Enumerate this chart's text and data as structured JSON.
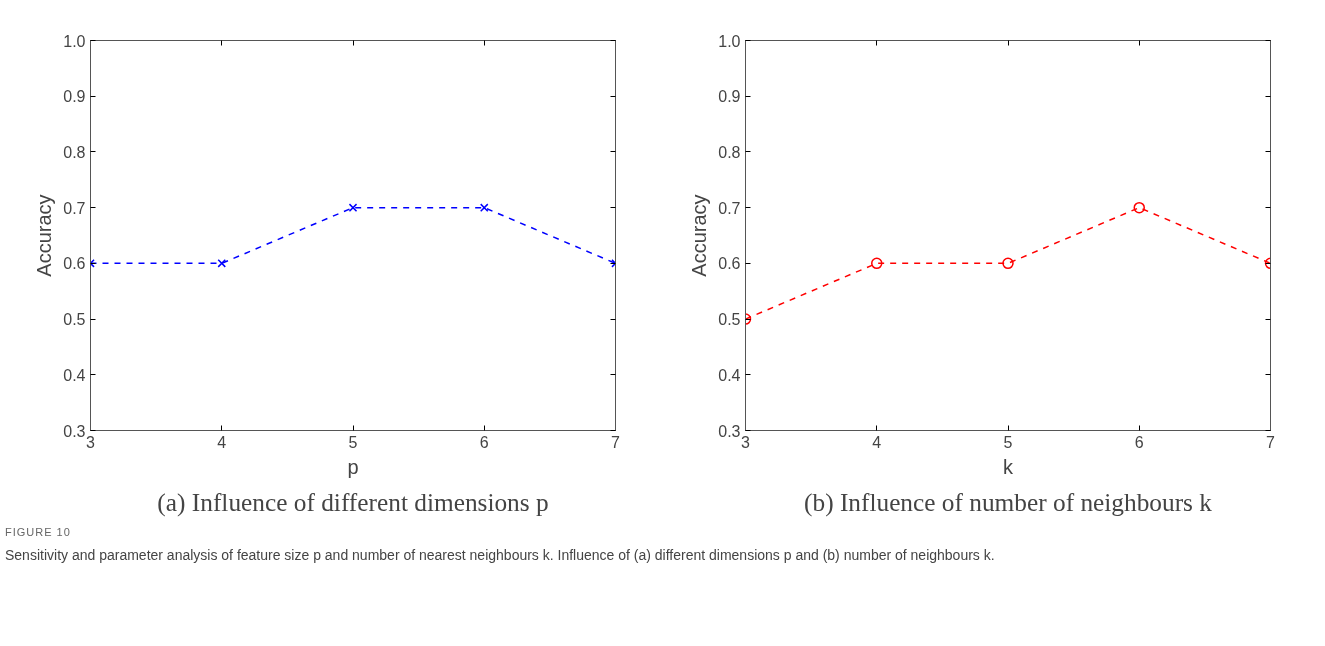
{
  "chart_data": [
    {
      "type": "line",
      "title": "(a) Influence of different dimensions p",
      "xlabel": "p",
      "ylabel": "Accuracy",
      "x": [
        3,
        4,
        5,
        6,
        7
      ],
      "series": [
        {
          "color": "#0000ff",
          "values": [
            0.6,
            0.6,
            0.7,
            0.7,
            0.6
          ]
        }
      ],
      "xlim": [
        3,
        7
      ],
      "xticks": [
        3,
        4,
        5,
        6,
        7
      ],
      "ylim": [
        0.3,
        1.0
      ],
      "yticks": [
        {
          "value": 0.3,
          "label": "0.3"
        },
        {
          "value": 0.4,
          "label": "0.4"
        },
        {
          "value": 0.5,
          "label": "0.5"
        },
        {
          "value": 0.6,
          "label": "0.6"
        },
        {
          "value": 0.7,
          "label": "0.7"
        },
        {
          "value": 0.8,
          "label": "0.8"
        },
        {
          "value": 0.9,
          "label": "0.9"
        },
        {
          "value": 1.0,
          "label": "1.0"
        }
      ],
      "grid": false,
      "marker": "cross",
      "line_style": "dashed",
      "annotations": [
        "FIGURE 10",
        "Sensitivity and parameter analysis of feature size p and number of nearest neighbours k. Influence of (a) different dimensions p and (b) number of neighbours k."
      ]
    },
    {
      "type": "line",
      "title": "(b) Influence of number of neighbours k",
      "xlabel": "k",
      "ylabel": "Accuracy",
      "x": [
        3,
        4,
        5,
        6,
        7
      ],
      "series": [
        {
          "color": "#ff0000",
          "values": [
            0.5,
            0.6,
            0.6,
            0.7,
            0.6
          ]
        }
      ],
      "xlim": [
        3,
        7
      ],
      "xticks": [
        3,
        4,
        5,
        6,
        7
      ],
      "ylim": [
        0.3,
        1.0
      ],
      "yticks": [
        {
          "value": 0.3,
          "label": "0.3"
        },
        {
          "value": 0.4,
          "label": "0.4"
        },
        {
          "value": 0.5,
          "label": "0.5"
        },
        {
          "value": 0.6,
          "label": "0.6"
        },
        {
          "value": 0.7,
          "label": "0.7"
        },
        {
          "value": 0.8,
          "label": "0.8"
        },
        {
          "value": 0.9,
          "label": "0.9"
        },
        {
          "value": 1.0,
          "label": "1.0"
        }
      ],
      "grid": false,
      "marker": "circle",
      "line_style": "dashed"
    }
  ]
}
